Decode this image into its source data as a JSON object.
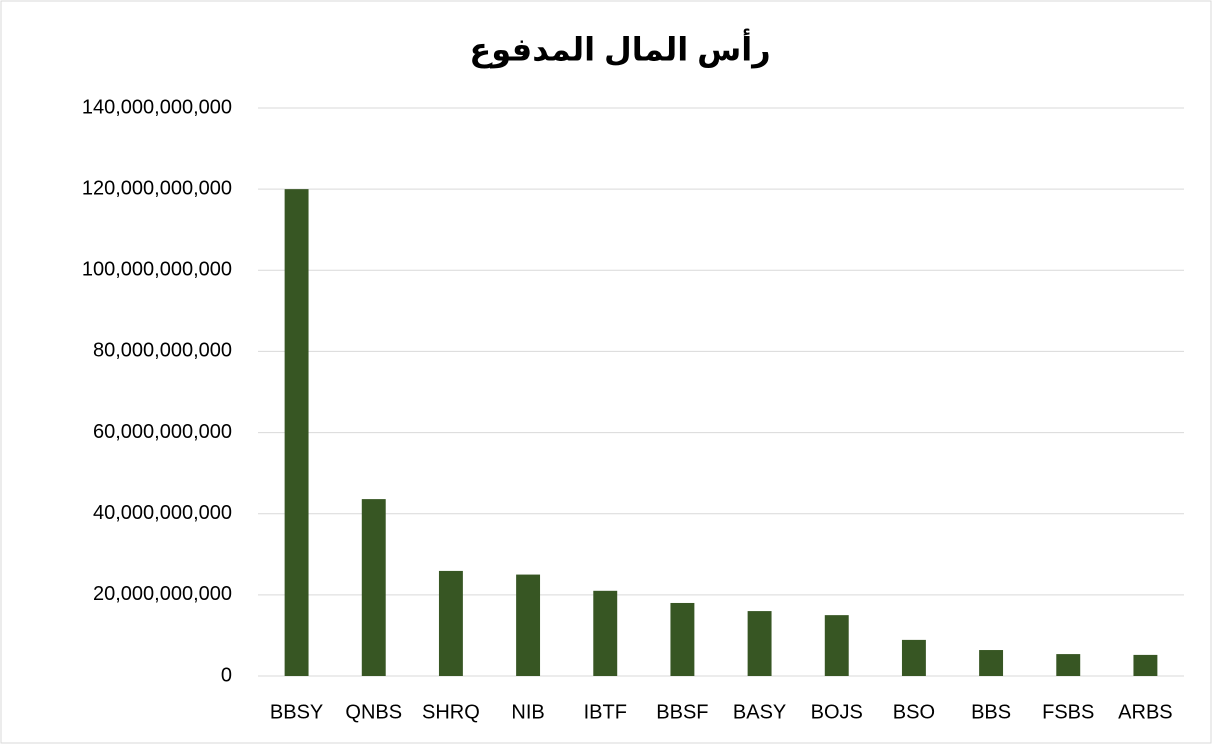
{
  "chart_data": {
    "type": "bar",
    "title": "رأس المال المدفوع",
    "categories": [
      "BBSY",
      "QNBS",
      "SHRQ",
      "NIB",
      "IBTF",
      "BBSF",
      "BASY",
      "BOJS",
      "BSO",
      "BBS",
      "FSBS",
      "ARBS"
    ],
    "values": [
      120000000000,
      43600000000,
      25900000000,
      25000000000,
      21000000000,
      18000000000,
      16000000000,
      15000000000,
      8900000000,
      6400000000,
      5400000000,
      5200000000
    ],
    "color": "#375623",
    "ylim": [
      0,
      140000000000
    ],
    "yticks": [
      0,
      {
        "value": 20000000000,
        "label": "20,000,000,000"
      },
      {
        "value": 40000000000,
        "label": "40,000,000,000"
      },
      {
        "value": 60000000000,
        "label": "60,000,000,000"
      },
      {
        "value": 80000000000,
        "label": "80,000,000,000"
      },
      {
        "value": 100000000000,
        "label": "100,000,000,000"
      },
      {
        "value": 120000000000,
        "label": "120,000,000,000"
      },
      {
        "value": 140000000000,
        "label": "140,000,000,000"
      }
    ],
    "grid": true
  }
}
